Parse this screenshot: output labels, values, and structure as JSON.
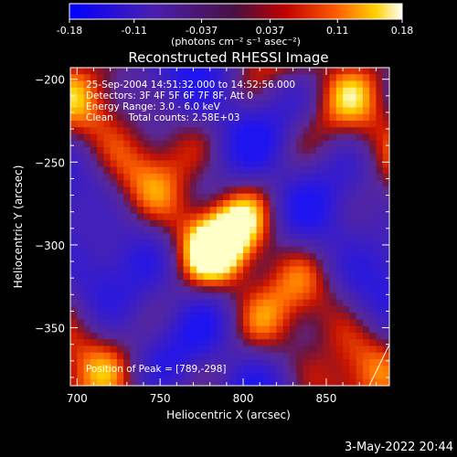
{
  "chart_data": {
    "type": "heatmap",
    "title": "Reconstructed RHESSI Image",
    "xlabel": "Heliocentric X (arcsec)",
    "ylabel": "Heliocentric Y (arcsec)",
    "xlim": [
      696,
      888
    ],
    "ylim": [
      -385,
      -193
    ],
    "x_ticks": [
      700,
      750,
      800,
      850
    ],
    "y_ticks": [
      -200,
      -250,
      -300,
      -350
    ],
    "colorbar": {
      "min": -0.18,
      "max": 0.18,
      "ticks": [
        "-0.18",
        "-0.11",
        "-0.037",
        "0.037",
        "0.11",
        "0.18"
      ],
      "tick_values": [
        -0.18,
        -0.11,
        -0.037,
        0.037,
        0.11,
        0.18
      ],
      "units_label": "(photons cm⁻² s⁻¹ asec⁻²)"
    },
    "annotations": [
      "25-Sep-2004 14:51:32.000 to 14:52:56.000",
      "Detectors: 3F 4F 5F 6F 7F 8F, Att 0",
      "Energy Range: 3.0 - 6.0 keV",
      "Clean     Total counts: 2.58E+03"
    ],
    "peak_label": "Position of Peak = [789,-298]",
    "peak": [
      789,
      -298
    ],
    "grid": false,
    "colormap": [
      "#0000ff",
      "#7030a0",
      "#5a2a80",
      "#c01010",
      "#ff4000",
      "#ffc000",
      "#ffff80"
    ]
  },
  "footer": {
    "date": "3-May-2022 20:44"
  }
}
